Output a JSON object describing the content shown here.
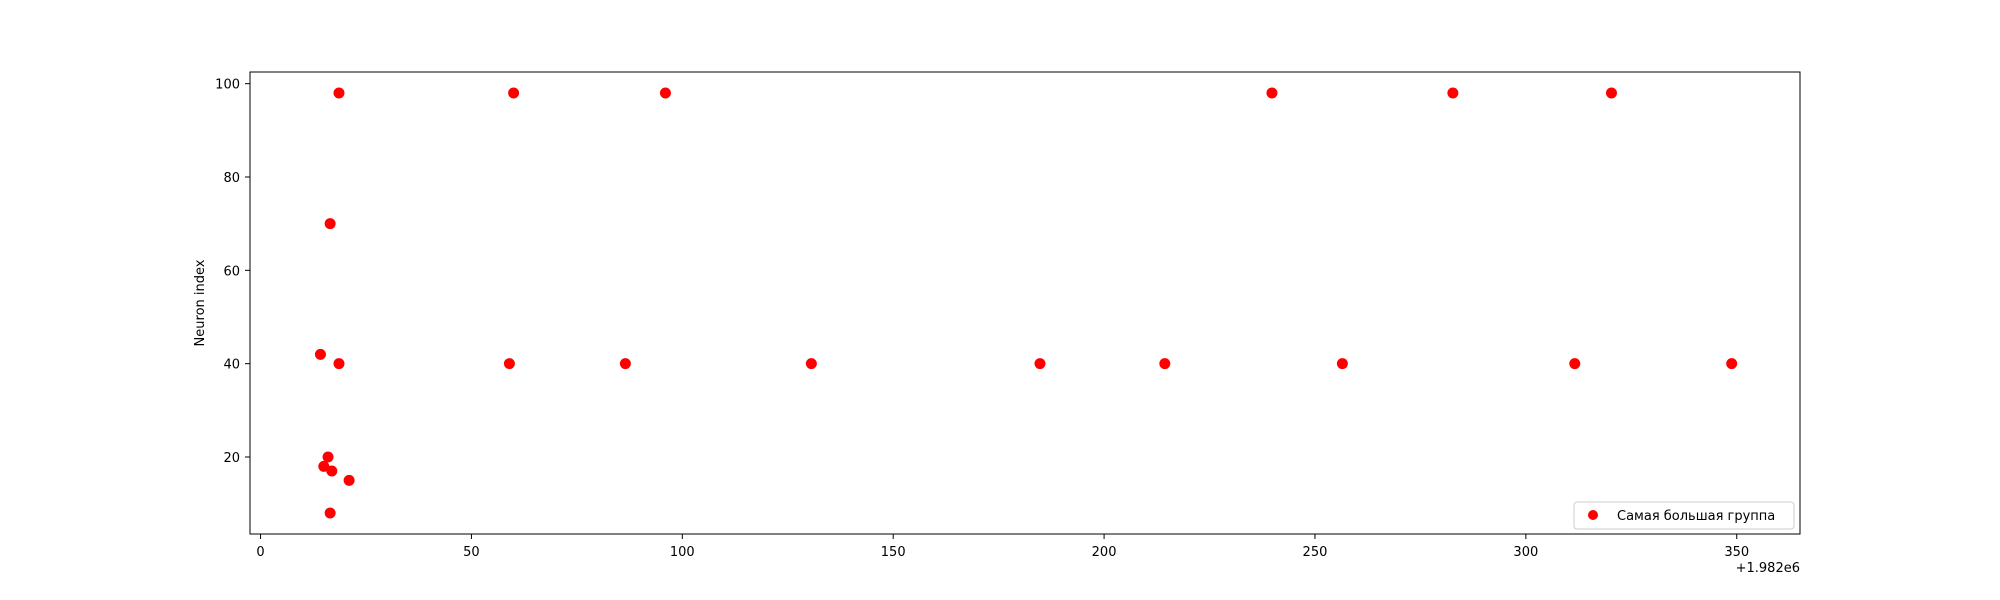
{
  "chart_data": {
    "type": "scatter",
    "title": "",
    "xlabel": "",
    "ylabel": "Neuron index",
    "x_offset_label": "+1.982e6",
    "xlim": [
      -2.5,
      365
    ],
    "ylim": [
      3.5,
      102.5
    ],
    "xticks": [
      0,
      50,
      100,
      150,
      200,
      250,
      300,
      350
    ],
    "yticks": [
      20,
      40,
      60,
      80,
      100
    ],
    "grid": false,
    "legend_position": "lower-right",
    "series": [
      {
        "name": "Самая большая группа",
        "color": "#ff0000",
        "points": [
          {
            "x": 14.2,
            "y": 42
          },
          {
            "x": 15.0,
            "y": 18
          },
          {
            "x": 16.0,
            "y": 20
          },
          {
            "x": 16.5,
            "y": 70
          },
          {
            "x": 16.5,
            "y": 8
          },
          {
            "x": 16.9,
            "y": 17
          },
          {
            "x": 18.6,
            "y": 98
          },
          {
            "x": 18.6,
            "y": 40
          },
          {
            "x": 21.0,
            "y": 15
          },
          {
            "x": 59.0,
            "y": 40
          },
          {
            "x": 60.0,
            "y": 98
          },
          {
            "x": 86.5,
            "y": 40
          },
          {
            "x": 96.0,
            "y": 98
          },
          {
            "x": 130.6,
            "y": 40
          },
          {
            "x": 184.8,
            "y": 40
          },
          {
            "x": 214.4,
            "y": 40
          },
          {
            "x": 239.8,
            "y": 98
          },
          {
            "x": 256.5,
            "y": 40
          },
          {
            "x": 282.7,
            "y": 98
          },
          {
            "x": 311.6,
            "y": 40
          },
          {
            "x": 320.3,
            "y": 98
          },
          {
            "x": 348.8,
            "y": 40
          }
        ]
      }
    ]
  }
}
